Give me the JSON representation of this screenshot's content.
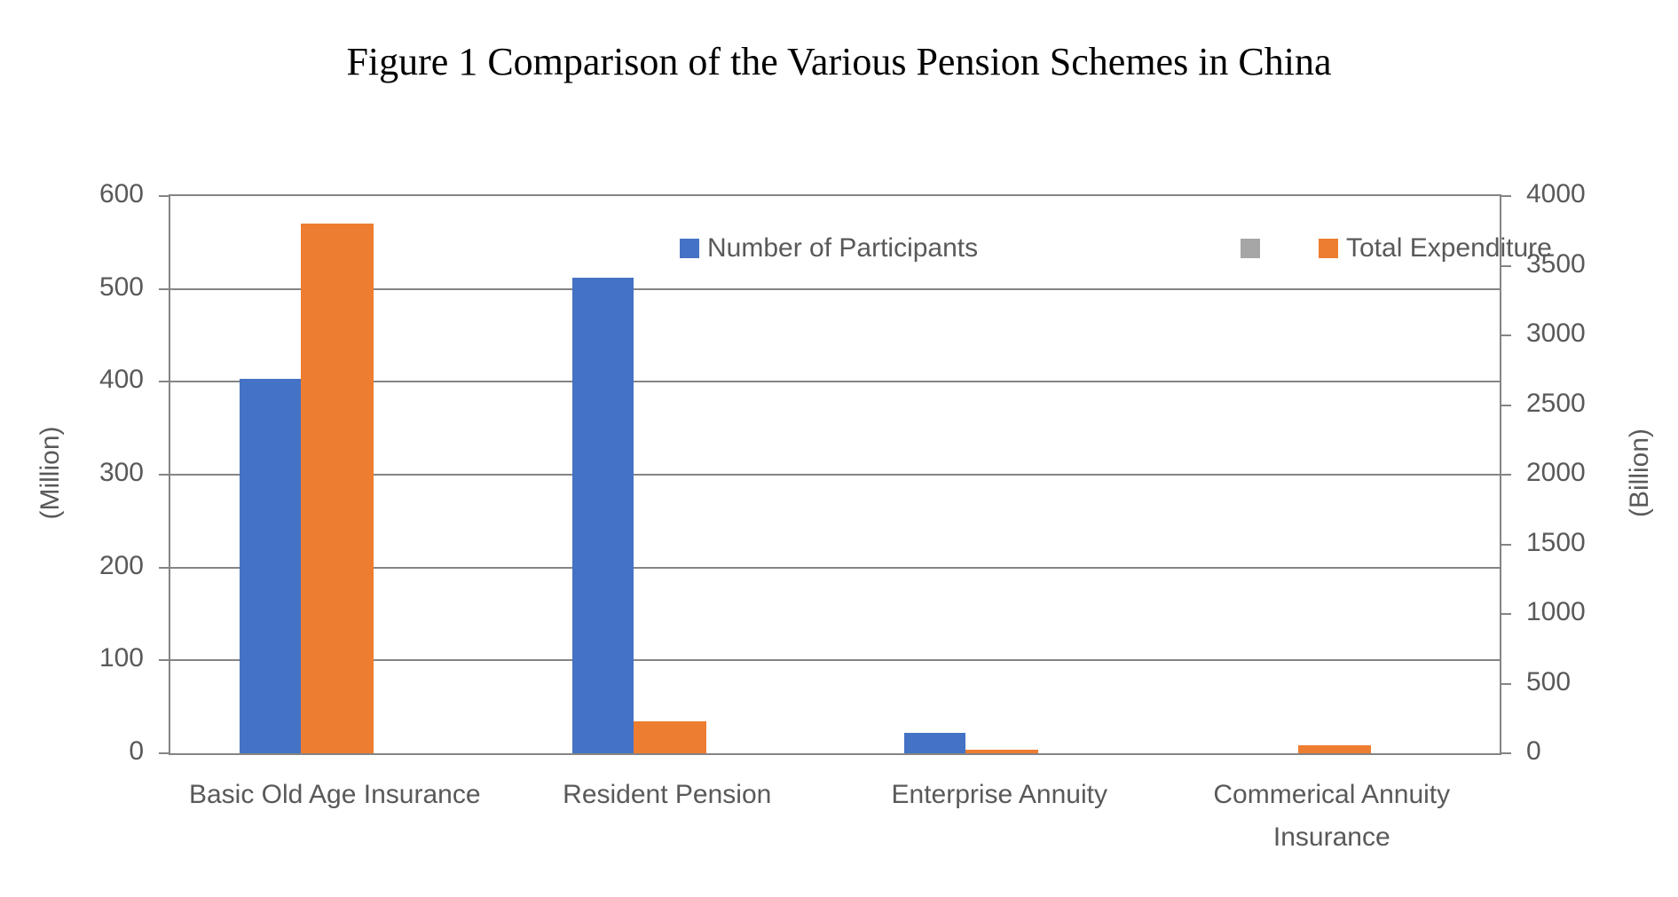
{
  "chart_data": {
    "type": "bar",
    "title": "Figure 1 Comparison of the Various Pension Schemes in China",
    "categories": [
      "Basic Old Age Insurance",
      "Resident Pension",
      "Enterprise Annuity",
      "Commerical Annuity\nInsurance"
    ],
    "series": [
      {
        "name": "Number of Participants",
        "axis": "left",
        "color": "#4472C4",
        "values": [
          403,
          512,
          22,
          0
        ]
      },
      {
        "name": "",
        "axis": "left",
        "color": "#A6A6A6",
        "values": [
          0,
          0,
          0,
          0
        ]
      },
      {
        "name": "Total Expenditure",
        "axis": "right",
        "color": "#ED7D31",
        "values": [
          3800,
          230,
          28,
          57
        ]
      }
    ],
    "left_axis": {
      "title": "(Million)",
      "min": 0,
      "max": 600,
      "step": 100
    },
    "right_axis": {
      "title": "(Billion)",
      "min": 0,
      "max": 4000,
      "step": 500
    },
    "grid": true,
    "legend_position": "top"
  },
  "colors": {
    "participants_blue": "#4472C4",
    "expenditure_orange": "#ED7D31",
    "hidden_series_gray": "#A6A6A6",
    "axis_line": "#848484",
    "label_text": "#595959",
    "title_text": "#000000"
  }
}
